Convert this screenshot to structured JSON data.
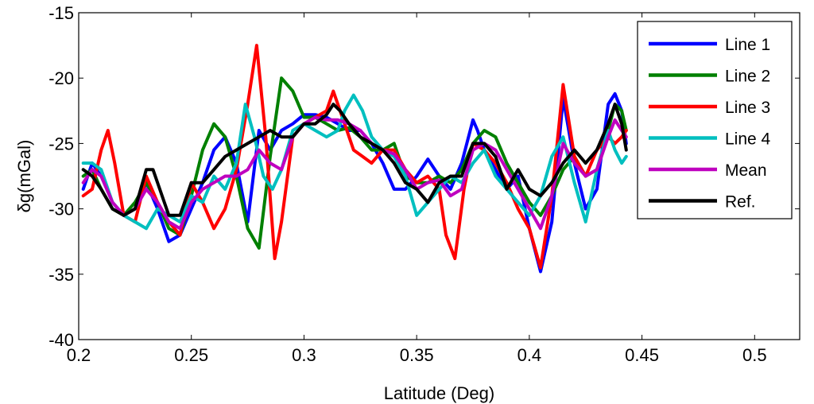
{
  "chart_data": {
    "type": "line",
    "title": "",
    "xlabel": "Latitude (Deg)",
    "ylabel": "δg(mGal)",
    "xlim": [
      0.2,
      0.52
    ],
    "ylim": [
      -40,
      -15
    ],
    "x_ticks": [
      0.2,
      0.25,
      0.3,
      0.35,
      0.4,
      0.45,
      0.5
    ],
    "x_tick_labels": [
      "0.2",
      "0.25",
      "0.3",
      "0.35",
      "0.4",
      "0.45",
      "0.5"
    ],
    "y_ticks": [
      -40,
      -35,
      -30,
      -25,
      -20,
      -15
    ],
    "y_tick_labels": [
      "-40",
      "-35",
      "-30",
      "-25",
      "-20",
      "-15"
    ],
    "grid": false,
    "legend_position": "top-right",
    "series": [
      {
        "name": "Line 1",
        "color": "#0000ff",
        "x": [
          0.202,
          0.206,
          0.21,
          0.215,
          0.22,
          0.225,
          0.23,
          0.235,
          0.24,
          0.245,
          0.25,
          0.255,
          0.26,
          0.265,
          0.27,
          0.275,
          0.28,
          0.285,
          0.29,
          0.295,
          0.3,
          0.305,
          0.31,
          0.315,
          0.32,
          0.325,
          0.33,
          0.335,
          0.34,
          0.345,
          0.35,
          0.355,
          0.36,
          0.365,
          0.37,
          0.375,
          0.377,
          0.38,
          0.385,
          0.39,
          0.395,
          0.4,
          0.405,
          0.41,
          0.415,
          0.42,
          0.425,
          0.43,
          0.435,
          0.438,
          0.441,
          0.443
        ],
        "y": [
          -28.5,
          -26.5,
          -27.5,
          -29.5,
          -30.5,
          -30.0,
          -28.0,
          -30.0,
          -32.5,
          -32.0,
          -30.0,
          -28.0,
          -25.5,
          -24.5,
          -26.5,
          -31.0,
          -24.0,
          -25.5,
          -24.0,
          -23.5,
          -22.8,
          -22.8,
          -23.0,
          -23.5,
          -24.0,
          -24.0,
          -25.0,
          -26.5,
          -28.5,
          -28.5,
          -27.5,
          -26.2,
          -27.5,
          -28.5,
          -26.5,
          -23.2,
          -24.0,
          -25.5,
          -27.0,
          -28.5,
          -27.5,
          -31.5,
          -34.8,
          -31.0,
          -21.5,
          -26.5,
          -30.0,
          -28.5,
          -22.0,
          -21.2,
          -22.5,
          -25.0
        ]
      },
      {
        "name": "Line 2",
        "color": "#008000",
        "x": [
          0.202,
          0.206,
          0.21,
          0.215,
          0.22,
          0.225,
          0.23,
          0.235,
          0.24,
          0.245,
          0.25,
          0.255,
          0.26,
          0.265,
          0.27,
          0.275,
          0.28,
          0.285,
          0.29,
          0.295,
          0.3,
          0.305,
          0.31,
          0.315,
          0.32,
          0.325,
          0.33,
          0.335,
          0.34,
          0.345,
          0.35,
          0.355,
          0.36,
          0.365,
          0.37,
          0.375,
          0.38,
          0.385,
          0.39,
          0.395,
          0.4,
          0.405,
          0.41,
          0.415,
          0.42,
          0.425,
          0.43,
          0.435,
          0.438,
          0.441,
          0.443
        ],
        "y": [
          -27.5,
          -27.0,
          -28.5,
          -30.0,
          -30.5,
          -29.5,
          -28.0,
          -29.5,
          -31.5,
          -32.0,
          -29.0,
          -25.5,
          -23.5,
          -24.5,
          -27.5,
          -31.5,
          -33.0,
          -26.0,
          -20.0,
          -21.0,
          -23.0,
          -23.0,
          -23.5,
          -24.0,
          -23.8,
          -24.5,
          -25.5,
          -25.5,
          -25.0,
          -27.5,
          -28.0,
          -28.0,
          -27.5,
          -28.0,
          -27.0,
          -25.0,
          -24.0,
          -24.5,
          -26.5,
          -28.0,
          -29.5,
          -30.5,
          -29.0,
          -27.0,
          -26.0,
          -27.5,
          -27.0,
          -24.0,
          -22.0,
          -22.5,
          -24.0
        ]
      },
      {
        "name": "Line 3",
        "color": "#ff0000",
        "x": [
          0.202,
          0.206,
          0.21,
          0.213,
          0.216,
          0.22,
          0.225,
          0.23,
          0.235,
          0.24,
          0.245,
          0.25,
          0.255,
          0.26,
          0.265,
          0.27,
          0.275,
          0.279,
          0.283,
          0.287,
          0.29,
          0.295,
          0.3,
          0.305,
          0.31,
          0.313,
          0.318,
          0.322,
          0.326,
          0.33,
          0.335,
          0.34,
          0.345,
          0.35,
          0.355,
          0.36,
          0.363,
          0.367,
          0.371,
          0.375,
          0.38,
          0.385,
          0.39,
          0.395,
          0.4,
          0.405,
          0.41,
          0.415,
          0.42,
          0.425,
          0.43,
          0.435,
          0.438,
          0.441,
          0.443
        ],
        "y": [
          -29.0,
          -28.5,
          -25.5,
          -24.0,
          -26.5,
          -30.5,
          -31.0,
          -27.5,
          -29.5,
          -31.0,
          -32.0,
          -28.0,
          -29.5,
          -31.5,
          -30.0,
          -27.0,
          -22.0,
          -17.5,
          -24.5,
          -33.8,
          -31.0,
          -24.5,
          -23.5,
          -23.0,
          -22.5,
          -21.0,
          -23.5,
          -25.5,
          -26.0,
          -26.5,
          -25.5,
          -25.5,
          -27.0,
          -28.0,
          -27.5,
          -28.5,
          -32.0,
          -33.8,
          -28.5,
          -25.0,
          -25.5,
          -26.5,
          -28.0,
          -30.0,
          -31.5,
          -34.5,
          -29.0,
          -20.5,
          -26.0,
          -27.5,
          -25.5,
          -24.5,
          -25.0,
          -24.5,
          -24.0
        ]
      },
      {
        "name": "Line 4",
        "color": "#00bfbf",
        "x": [
          0.202,
          0.206,
          0.21,
          0.215,
          0.22,
          0.225,
          0.23,
          0.235,
          0.24,
          0.245,
          0.25,
          0.255,
          0.26,
          0.265,
          0.27,
          0.274,
          0.278,
          0.282,
          0.286,
          0.29,
          0.295,
          0.3,
          0.305,
          0.31,
          0.315,
          0.318,
          0.322,
          0.326,
          0.33,
          0.335,
          0.34,
          0.345,
          0.35,
          0.355,
          0.36,
          0.365,
          0.37,
          0.375,
          0.38,
          0.385,
          0.39,
          0.395,
          0.4,
          0.405,
          0.41,
          0.415,
          0.42,
          0.425,
          0.43,
          0.435,
          0.438,
          0.441,
          0.443
        ],
        "y": [
          -26.5,
          -26.5,
          -27.0,
          -29.5,
          -30.5,
          -31.0,
          -31.5,
          -30.0,
          -30.5,
          -31.0,
          -29.0,
          -29.5,
          -27.5,
          -28.5,
          -26.5,
          -22.0,
          -24.5,
          -27.5,
          -28.5,
          -27.0,
          -24.0,
          -23.5,
          -24.0,
          -24.5,
          -24.0,
          -22.5,
          -21.3,
          -22.5,
          -24.5,
          -25.5,
          -26.0,
          -27.5,
          -30.5,
          -29.5,
          -28.5,
          -27.5,
          -28.0,
          -26.5,
          -25.5,
          -27.5,
          -28.5,
          -29.5,
          -30.5,
          -29.0,
          -26.0,
          -24.5,
          -28.0,
          -31.0,
          -27.0,
          -24.0,
          -25.5,
          -26.5,
          -26.0
        ]
      },
      {
        "name": "Mean",
        "color": "#bf00bf",
        "x": [
          0.202,
          0.206,
          0.21,
          0.215,
          0.22,
          0.225,
          0.23,
          0.235,
          0.24,
          0.245,
          0.25,
          0.255,
          0.26,
          0.265,
          0.27,
          0.275,
          0.28,
          0.285,
          0.29,
          0.295,
          0.3,
          0.305,
          0.31,
          0.315,
          0.32,
          0.325,
          0.33,
          0.335,
          0.34,
          0.345,
          0.35,
          0.355,
          0.36,
          0.365,
          0.37,
          0.375,
          0.38,
          0.385,
          0.39,
          0.395,
          0.4,
          0.405,
          0.41,
          0.415,
          0.42,
          0.425,
          0.43,
          0.435,
          0.438,
          0.441,
          0.443
        ],
        "y": [
          -28.0,
          -27.0,
          -27.5,
          -29.5,
          -30.5,
          -30.0,
          -28.5,
          -29.5,
          -31.0,
          -31.5,
          -29.5,
          -28.5,
          -28.0,
          -27.5,
          -27.5,
          -27.0,
          -25.5,
          -26.5,
          -27.0,
          -24.5,
          -23.5,
          -23.0,
          -23.2,
          -23.2,
          -23.5,
          -24.0,
          -25.0,
          -25.5,
          -25.8,
          -27.0,
          -28.5,
          -28.0,
          -27.8,
          -29.0,
          -28.5,
          -25.5,
          -25.0,
          -25.5,
          -27.0,
          -28.5,
          -30.0,
          -31.5,
          -29.0,
          -25.0,
          -26.5,
          -27.5,
          -27.0,
          -24.5,
          -23.2,
          -24.0,
          -24.5
        ]
      },
      {
        "name": "Ref.",
        "color": "#000000",
        "x": [
          0.202,
          0.206,
          0.21,
          0.215,
          0.22,
          0.225,
          0.23,
          0.233,
          0.236,
          0.24,
          0.245,
          0.25,
          0.255,
          0.26,
          0.265,
          0.27,
          0.275,
          0.28,
          0.285,
          0.29,
          0.295,
          0.3,
          0.305,
          0.31,
          0.313,
          0.316,
          0.32,
          0.325,
          0.33,
          0.335,
          0.34,
          0.345,
          0.35,
          0.355,
          0.36,
          0.365,
          0.37,
          0.375,
          0.38,
          0.385,
          0.39,
          0.395,
          0.4,
          0.405,
          0.41,
          0.415,
          0.42,
          0.425,
          0.43,
          0.435,
          0.438,
          0.441,
          0.443
        ],
        "y": [
          -27.0,
          -27.5,
          -28.5,
          -30.0,
          -30.5,
          -30.0,
          -27.0,
          -27.0,
          -28.5,
          -30.5,
          -30.5,
          -28.0,
          -28.0,
          -27.0,
          -26.0,
          -25.5,
          -25.0,
          -24.5,
          -24.0,
          -24.5,
          -24.5,
          -23.5,
          -23.5,
          -22.8,
          -22.0,
          -22.5,
          -23.5,
          -24.5,
          -25.0,
          -25.5,
          -26.5,
          -28.0,
          -28.5,
          -29.5,
          -28.0,
          -27.5,
          -27.5,
          -25.0,
          -25.0,
          -26.0,
          -28.5,
          -27.0,
          -28.5,
          -29.0,
          -28.0,
          -26.5,
          -25.5,
          -26.5,
          -25.5,
          -23.5,
          -22.0,
          -23.5,
          -25.5
        ]
      }
    ]
  }
}
